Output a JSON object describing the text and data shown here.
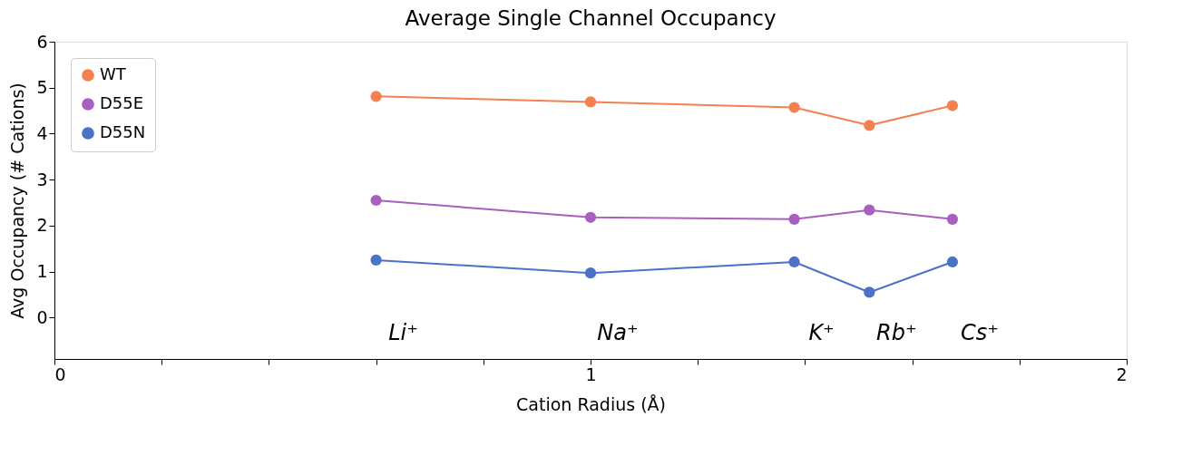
{
  "chart_data": {
    "type": "line",
    "title": "Average Single Channel Occupancy",
    "xlabel": "Cation Radius (Å)",
    "ylabel": "Avg Occupancy (# Cations)",
    "x": [
      0.6,
      1.0,
      1.38,
      1.52,
      1.675
    ],
    "series": [
      {
        "name": "WT",
        "color": "#f4804f",
        "values": [
          4.81,
          4.69,
          4.57,
          4.18,
          4.61
        ]
      },
      {
        "name": "D55E",
        "color": "#a95fbf",
        "values": [
          2.55,
          2.18,
          2.14,
          2.34,
          2.14
        ]
      },
      {
        "name": "D55N",
        "color": "#4a72c9",
        "values": [
          1.25,
          0.97,
          1.21,
          0.55,
          1.21
        ]
      }
    ],
    "xlim": [
      0,
      2
    ],
    "ylim": [
      -0.9,
      6
    ],
    "xticks": [
      0,
      {
        "value": 0.2,
        "label": null
      },
      {
        "value": 0.4,
        "label": null
      },
      {
        "value": 0.6,
        "label": null
      },
      {
        "value": 0.8,
        "label": null
      },
      1,
      {
        "value": 1.2,
        "label": null
      },
      {
        "value": 1.4,
        "label": null
      },
      {
        "value": 1.6,
        "label": null
      },
      {
        "value": 1.8,
        "label": null
      },
      2
    ],
    "yticks": [
      0,
      1,
      2,
      3,
      4,
      5,
      6
    ],
    "annotations": [
      "Li⁺",
      "Na⁺",
      "K⁺",
      "Rb⁺",
      "Cs⁺"
    ],
    "legend": "top left",
    "marker": "circle",
    "line_style": "solid",
    "grid": false
  }
}
